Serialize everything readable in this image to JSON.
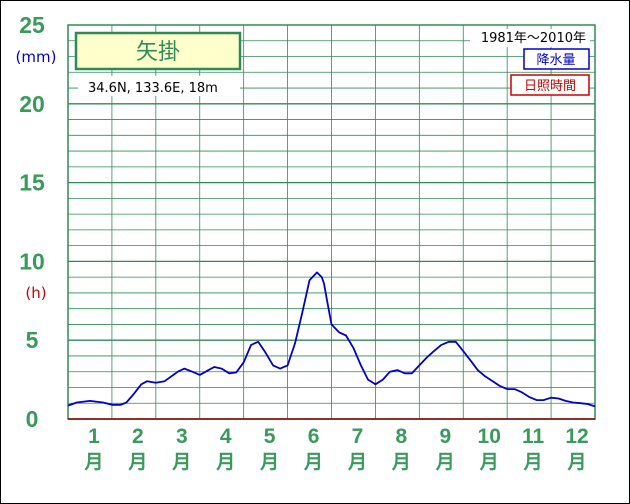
{
  "station": {
    "name": "矢掛",
    "coords": "34.6N,  133.6E,  18m",
    "period": "1981年～2010年"
  },
  "legend": {
    "precip_label": "降水量",
    "sunshine_label": "日照時間"
  },
  "colors": {
    "frame": "#2e8b57",
    "grid": "#2e8b57",
    "tick_text": "#3a9a5c",
    "precip": "#0000cc",
    "sunshine": "#cc0000",
    "title_box_bg": "#ffffcc"
  },
  "chart_data": {
    "type": "line",
    "title": "矢掛",
    "ylabel_top": "(mm)",
    "ylabel_mid": "(h)",
    "xlim": [
      0.5,
      12.5
    ],
    "ylim": [
      0,
      25
    ],
    "y_ticks": [
      "0",
      "5",
      "10",
      "15",
      "20",
      "25"
    ],
    "x_tick_numbers": [
      "1",
      "2",
      "3",
      "4",
      "5",
      "6",
      "7",
      "8",
      "9",
      "10",
      "11",
      "12"
    ],
    "x_tick_month": "月",
    "grid": true,
    "legend_position": "top-right",
    "series": [
      {
        "name": "降水量",
        "color": "#0000cc",
        "x": [
          0.5,
          0.7,
          1.0,
          1.3,
          1.5,
          1.7,
          1.83,
          2.0,
          2.17,
          2.3,
          2.5,
          2.7,
          2.9,
          3.0,
          3.15,
          3.33,
          3.5,
          3.7,
          3.83,
          4.0,
          4.17,
          4.33,
          4.5,
          4.67,
          4.83,
          5.0,
          5.17,
          5.33,
          5.5,
          5.67,
          5.83,
          6.0,
          6.17,
          6.28,
          6.33,
          6.4,
          6.5,
          6.67,
          6.83,
          7.0,
          7.17,
          7.33,
          7.5,
          7.67,
          7.83,
          8.0,
          8.17,
          8.33,
          8.5,
          8.67,
          8.83,
          9.0,
          9.17,
          9.33,
          9.5,
          9.67,
          9.83,
          10.0,
          10.17,
          10.33,
          10.5,
          10.67,
          10.83,
          11.0,
          11.17,
          11.33,
          11.5,
          11.67,
          11.83,
          12.0,
          12.17,
          12.33,
          12.5
        ],
        "values": [
          0.85,
          1.05,
          1.15,
          1.05,
          0.9,
          0.9,
          1.05,
          1.6,
          2.2,
          2.4,
          2.3,
          2.4,
          2.8,
          3.0,
          3.2,
          3.0,
          2.8,
          3.1,
          3.3,
          3.2,
          2.9,
          2.95,
          3.6,
          4.7,
          4.9,
          4.2,
          3.4,
          3.2,
          3.4,
          4.8,
          6.7,
          8.8,
          9.3,
          9.0,
          8.6,
          7.5,
          6.0,
          5.5,
          5.3,
          4.5,
          3.4,
          2.5,
          2.2,
          2.5,
          3.0,
          3.1,
          2.9,
          2.9,
          3.4,
          3.9,
          4.3,
          4.7,
          4.9,
          4.9,
          4.3,
          3.7,
          3.1,
          2.7,
          2.4,
          2.1,
          1.9,
          1.9,
          1.7,
          1.4,
          1.2,
          1.2,
          1.35,
          1.3,
          1.15,
          1.05,
          1.0,
          0.95,
          0.8
        ]
      }
    ]
  }
}
